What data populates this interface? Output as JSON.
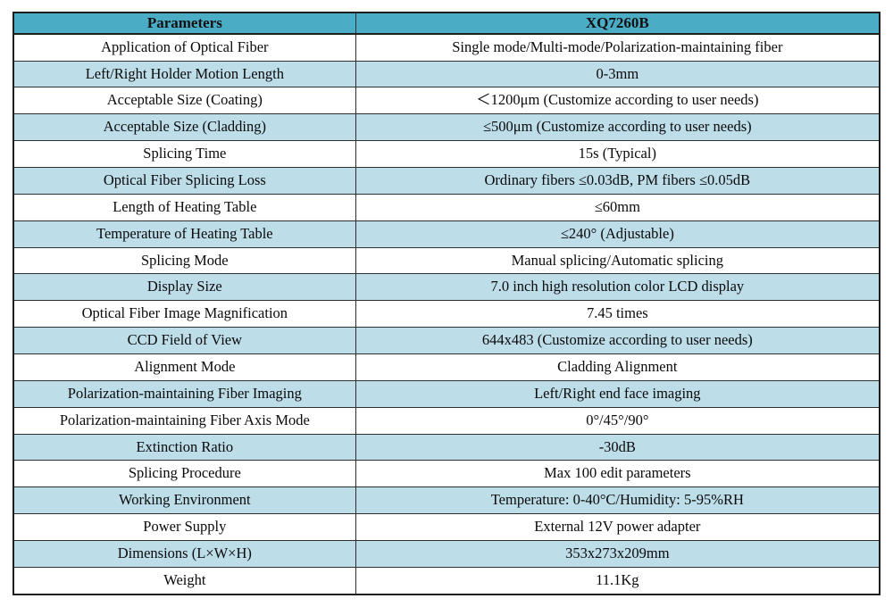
{
  "table": {
    "header_bg": "#4BACC6",
    "alt_row_bg": "#BDDDE9",
    "border_color": "#2e2e2e",
    "columns": [
      "Parameters",
      "XQ7260B"
    ],
    "rows": [
      {
        "param": "Application of Optical Fiber",
        "value": "Single mode/Multi-mode/Polarization-maintaining fiber"
      },
      {
        "param": "Left/Right Holder Motion Length",
        "value": "0-3mm"
      },
      {
        "param": "Acceptable Size (Coating)",
        "value": "＜1200μm (Customize according to user needs)"
      },
      {
        "param": "Acceptable Size (Cladding)",
        "value": "≤500μm (Customize according to user needs)"
      },
      {
        "param": "Splicing Time",
        "value": "15s (Typical)"
      },
      {
        "param": "Optical Fiber Splicing Loss",
        "value": "Ordinary fibers ≤0.03dB, PM fibers ≤0.05dB"
      },
      {
        "param": "Length of Heating Table",
        "value": "≤60mm"
      },
      {
        "param": "Temperature of Heating Table",
        "value": "≤240° (Adjustable)"
      },
      {
        "param": "Splicing Mode",
        "value": "Manual splicing/Automatic splicing"
      },
      {
        "param": "Display Size",
        "value": "7.0 inch high resolution color LCD display"
      },
      {
        "param": "Optical Fiber Image Magnification",
        "value": "7.45 times"
      },
      {
        "param": "CCD Field of View",
        "value": "644x483 (Customize according to user needs)"
      },
      {
        "param": "Alignment Mode",
        "value": "Cladding Alignment"
      },
      {
        "param": "Polarization-maintaining Fiber Imaging",
        "value": "Left/Right end face imaging"
      },
      {
        "param": "Polarization-maintaining Fiber Axis Mode",
        "value": "0°/45°/90°"
      },
      {
        "param": "Extinction Ratio",
        "value": "-30dB"
      },
      {
        "param": "Splicing Procedure",
        "value": "Max 100 edit parameters"
      },
      {
        "param": "Working Environment",
        "value": "Temperature: 0-40°C/Humidity: 5-95%RH"
      },
      {
        "param": "Power Supply",
        "value": "External 12V power adapter"
      },
      {
        "param": "Dimensions (L×W×H)",
        "value": "353x273x209mm"
      },
      {
        "param": "Weight",
        "value": "11.1Kg"
      }
    ]
  }
}
